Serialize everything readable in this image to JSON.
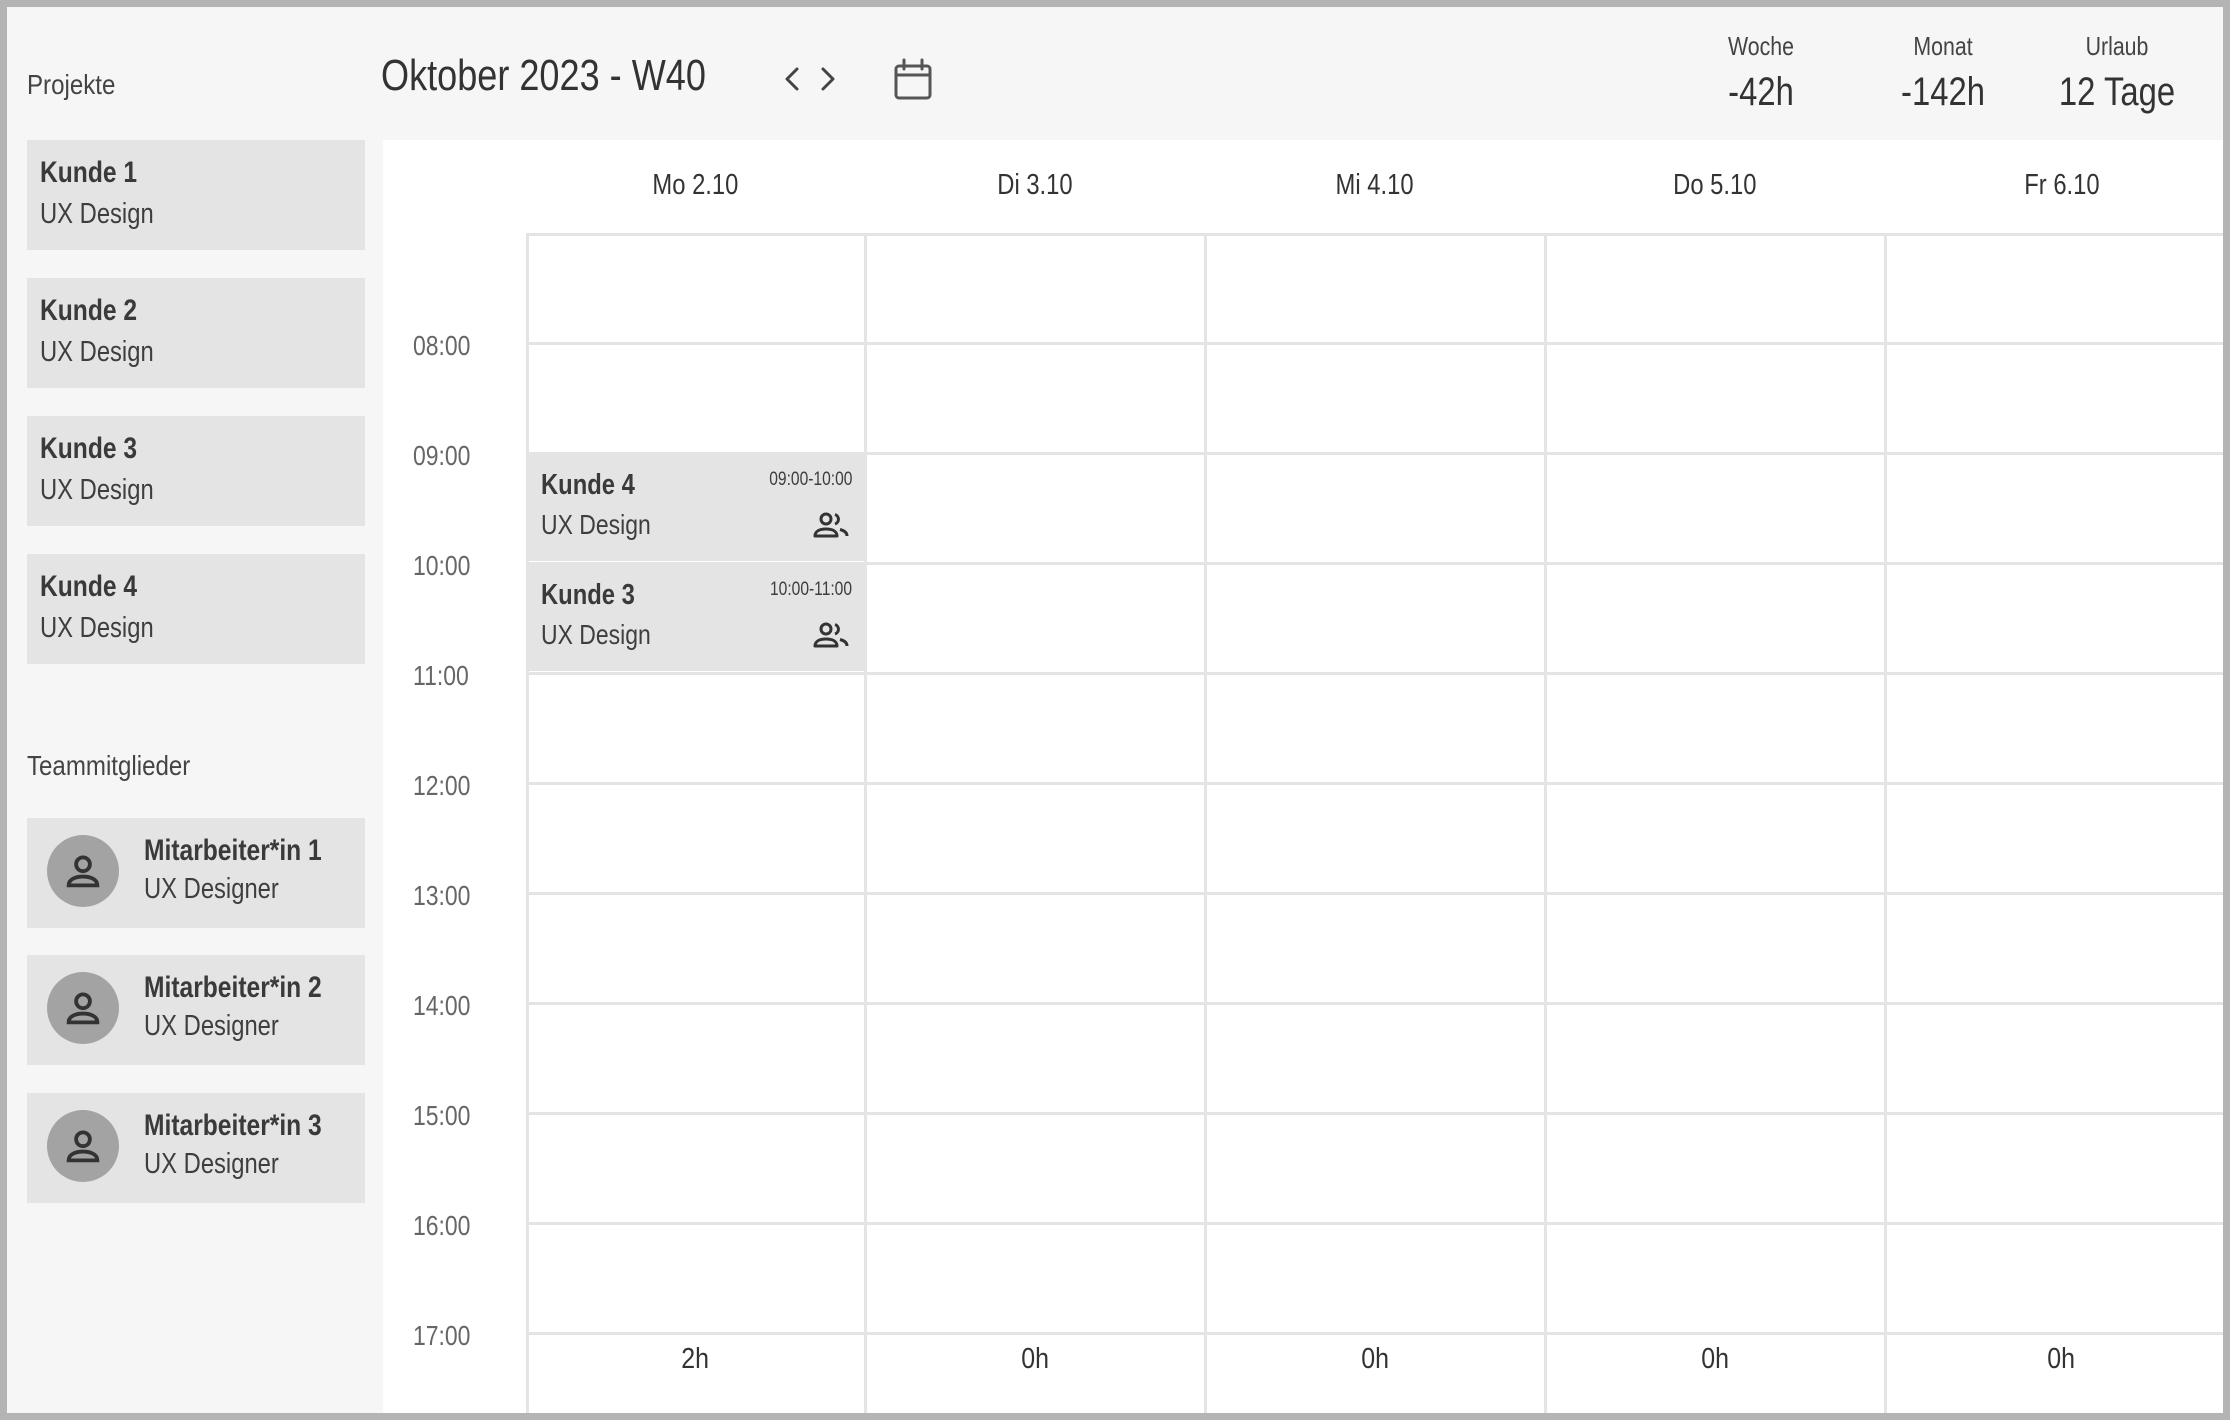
{
  "sidebar": {
    "projects_title": "Projekte",
    "projects": [
      {
        "name": "Kunde 1",
        "type": "UX Design"
      },
      {
        "name": "Kunde 2",
        "type": "UX Design"
      },
      {
        "name": "Kunde 3",
        "type": "UX Design"
      },
      {
        "name": "Kunde 4",
        "type": "UX Design"
      }
    ],
    "team_title": "Teammitglieder",
    "members": [
      {
        "name": "Mitarbeiter*in 1",
        "role": "UX Designer"
      },
      {
        "name": "Mitarbeiter*in 2",
        "role": "UX Designer"
      },
      {
        "name": "Mitarbeiter*in 3",
        "role": "UX Designer"
      }
    ]
  },
  "header": {
    "title": "Oktober 2023 -  W40",
    "stats": {
      "week": {
        "label": "Woche",
        "value": "-42h"
      },
      "month": {
        "label": "Monat",
        "value": "-142h"
      },
      "vacation": {
        "label": "Urlaub",
        "value": "12 Tage"
      }
    }
  },
  "calendar": {
    "days": [
      "Mo 2.10",
      "Di 3.10",
      "Mi 4.10",
      "Do 5.10",
      "Fr 6.10"
    ],
    "hours": [
      "08:00",
      "09:00",
      "10:00",
      "11:00",
      "12:00",
      "13:00",
      "14:00",
      "15:00",
      "16:00",
      "17:00"
    ],
    "events": [
      {
        "title": "Kunde 4",
        "subtitle": "UX Design",
        "time": "09:00-10:00",
        "icon": "people-icon"
      },
      {
        "title": "Kunde 3",
        "subtitle": "UX Design",
        "time": "10:00-11:00",
        "icon": "people-icon"
      }
    ],
    "totals": [
      "2h",
      "0h",
      "0h",
      "0h",
      "0h"
    ]
  }
}
